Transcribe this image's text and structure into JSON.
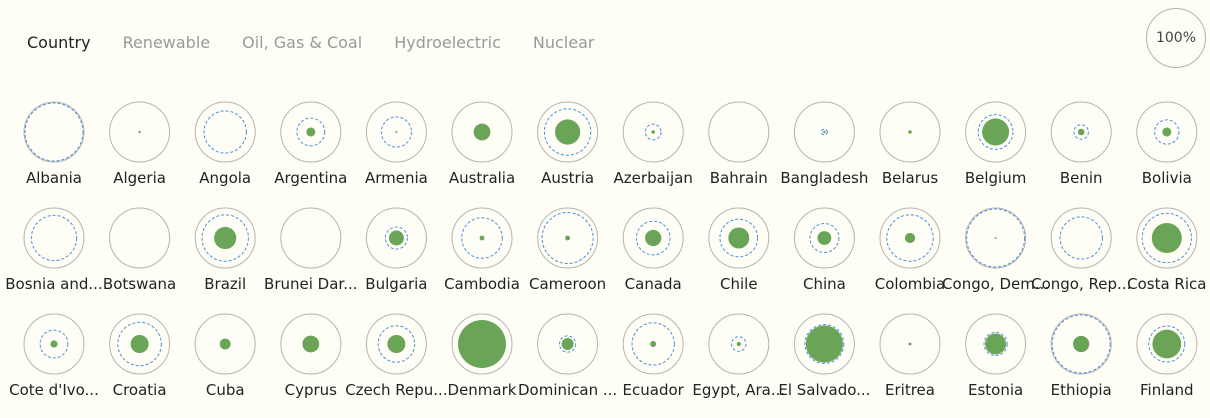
{
  "tabs": [
    {
      "label": "Country",
      "active": true
    },
    {
      "label": "Renewable",
      "active": false
    },
    {
      "label": "Oil, Gas & Coal",
      "active": false
    },
    {
      "label": "Hydroelectric",
      "active": false
    },
    {
      "label": "Nuclear",
      "active": false
    }
  ],
  "zoom_label": "100%",
  "colors": {
    "outer": "#b4b4b4",
    "renewable": "#6aa457",
    "hydro_ring": "#4f8fd6",
    "oil_ring": "#e6a317",
    "nuclear_ring": "#c9552b"
  },
  "chart_data": {
    "type": "bubble-grid",
    "units": "fraction of largest circle radius",
    "countries": [
      {
        "name": "Albania",
        "fill": 0,
        "ring": 1.0
      },
      {
        "name": "Algeria",
        "fill": 0.04,
        "ring": 0
      },
      {
        "name": "Angola",
        "fill": 0,
        "ring": 0.73
      },
      {
        "name": "Argentina",
        "fill": 0.15,
        "ring": 0.48
      },
      {
        "name": "Armenia",
        "fill": 0.02,
        "ring": 0.52
      },
      {
        "name": "Australia",
        "fill": 0.28,
        "ring": 0
      },
      {
        "name": "Austria",
        "fill": 0.42,
        "ring": 0.8
      },
      {
        "name": "Azerbaijan",
        "fill": 0.06,
        "ring": 0.27
      },
      {
        "name": "Bahrain",
        "fill": 0,
        "ring": 0
      },
      {
        "name": "Bangladesh",
        "fill": 0.04,
        "ring": 0.1
      },
      {
        "name": "Belarus",
        "fill": 0.06,
        "ring": 0
      },
      {
        "name": "Belgium",
        "fill": 0.45,
        "ring": 0.6
      },
      {
        "name": "Benin",
        "fill": 0.11,
        "ring": 0.25
      },
      {
        "name": "Bolivia",
        "fill": 0.15,
        "ring": 0.42
      },
      {
        "name": "Bosnia and...",
        "fill": 0,
        "ring": 0.78
      },
      {
        "name": "Botswana",
        "fill": 0,
        "ring": 0
      },
      {
        "name": "Brazil",
        "fill": 0.37,
        "ring": 0.8
      },
      {
        "name": "Brunei Dar...",
        "fill": 0,
        "ring": 0
      },
      {
        "name": "Bulgaria",
        "fill": 0.25,
        "ring": 0.38
      },
      {
        "name": "Cambodia",
        "fill": 0.08,
        "ring": 0.7
      },
      {
        "name": "Cameroon",
        "fill": 0.08,
        "ring": 0.88
      },
      {
        "name": "Canada",
        "fill": 0.27,
        "ring": 0.58
      },
      {
        "name": "Chile",
        "fill": 0.35,
        "ring": 0.65
      },
      {
        "name": "China",
        "fill": 0.23,
        "ring": 0.5
      },
      {
        "name": "Colombia",
        "fill": 0.17,
        "ring": 0.8
      },
      {
        "name": "Congo, Dem...",
        "fill": 0.02,
        "ring": 1.0
      },
      {
        "name": "Congo, Rep...",
        "fill": 0,
        "ring": 0.73
      },
      {
        "name": "Costa Rica",
        "fill": 0.5,
        "ring": 0.85
      },
      {
        "name": "Cote d'Ivo...",
        "fill": 0.12,
        "ring": 0.48
      },
      {
        "name": "Croatia",
        "fill": 0.3,
        "ring": 0.75
      },
      {
        "name": "Cuba",
        "fill": 0.18,
        "ring": 0
      },
      {
        "name": "Cyprus",
        "fill": 0.28,
        "ring": 0
      },
      {
        "name": "Czech Repu...",
        "fill": 0.3,
        "ring": 0.63
      },
      {
        "name": "Denmark",
        "fill": 0.8,
        "ring": 0
      },
      {
        "name": "Dominican ...",
        "fill": 0.2,
        "ring": 0.28
      },
      {
        "name": "Ecuador",
        "fill": 0.1,
        "ring": 0.73
      },
      {
        "name": "Egypt, Ara...",
        "fill": 0.07,
        "ring": 0.25
      },
      {
        "name": "El Salvado...",
        "fill": 0.62,
        "ring": 0.67
      },
      {
        "name": "Eritrea",
        "fill": 0.05,
        "ring": 0
      },
      {
        "name": "Estonia",
        "fill": 0.35,
        "ring": 0.4
      },
      {
        "name": "Ethiopia",
        "fill": 0.27,
        "ring": 1.0
      },
      {
        "name": "Finland",
        "fill": 0.48,
        "ring": 0.62
      }
    ]
  }
}
